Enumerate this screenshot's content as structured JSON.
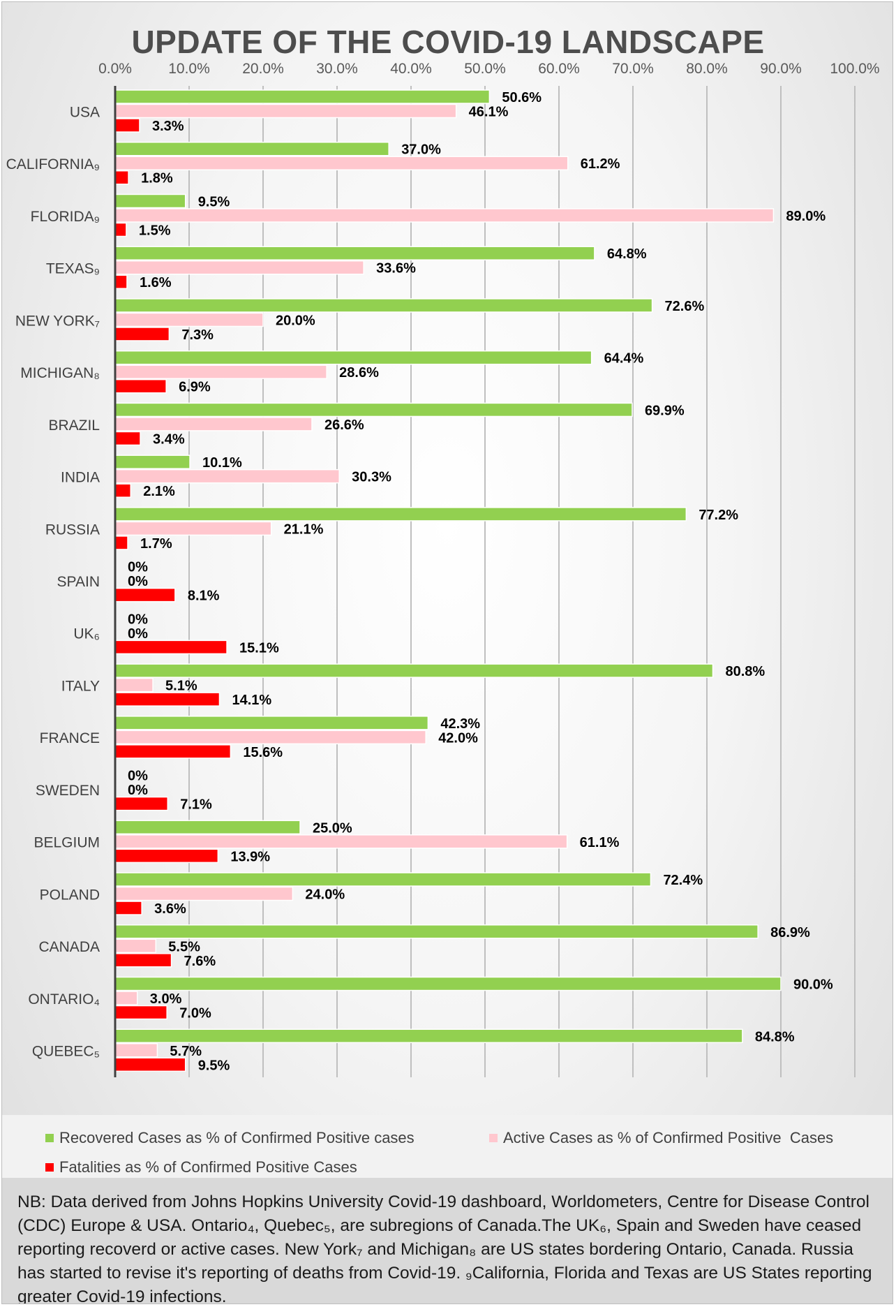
{
  "chart_data": {
    "type": "bar",
    "orientation": "horizontal",
    "title": "UPDATE OF THE COVID-19 LANDSCAPE",
    "xlim": [
      0,
      100
    ],
    "x_ticks": [
      "0.0%",
      "10.0%",
      "20.0%",
      "30.0%",
      "40.0%",
      "50.0%",
      "60.0%",
      "70.0%",
      "80.0%",
      "90.0%",
      "100.0%"
    ],
    "x_axis_position": "top",
    "grid": true,
    "legend_position": "bottom",
    "categories": [
      "USA",
      "CALIFORNIA₉",
      "FLORIDA₉",
      "TEXAS₉",
      "NEW YORK₇",
      "MICHIGAN₈",
      "BRAZIL",
      "INDIA",
      "RUSSIA",
      "SPAIN",
      "UK₆",
      "ITALY",
      "FRANCE",
      "SWEDEN",
      "BELGIUM",
      "POLAND",
      "CANADA",
      "ONTARIO₄",
      "QUEBEC₅"
    ],
    "series": [
      {
        "name": "Recovered Cases as % of Confirmed Positive cases",
        "color": "#92d050",
        "values": [
          50.6,
          37.0,
          9.5,
          64.8,
          72.6,
          64.4,
          69.9,
          10.1,
          77.2,
          0,
          0,
          80.8,
          42.3,
          0,
          25.0,
          72.4,
          86.9,
          90.0,
          84.8
        ],
        "labels": [
          "50.6%",
          "37.0%",
          "9.5%",
          "64.8%",
          "72.6%",
          "64.4%",
          "69.9%",
          "10.1%",
          "77.2%",
          "0%",
          "0%",
          "80.8%",
          "42.3%",
          "0%",
          "25.0%",
          "72.4%",
          "86.9%",
          "90.0%",
          "84.8%"
        ]
      },
      {
        "name": "Active Cases as % of Confirmed Positive  Cases",
        "color": "#ffc7ce",
        "values": [
          46.1,
          61.2,
          89.0,
          33.6,
          20.0,
          28.6,
          26.6,
          30.3,
          21.1,
          0,
          0,
          5.1,
          42.0,
          0,
          61.1,
          24.0,
          5.5,
          3.0,
          5.7
        ],
        "labels": [
          "46.1%",
          "61.2%",
          "89.0%",
          "33.6%",
          "20.0%",
          "28.6%",
          "26.6%",
          "30.3%",
          "21.1%",
          "0%",
          "0%",
          "5.1%",
          "42.0%",
          "0%",
          "61.1%",
          "24.0%",
          "5.5%",
          "3.0%",
          "5.7%"
        ]
      },
      {
        "name": "Fatalities as % of Confirmed Positive Cases",
        "color": "#ff0000",
        "values": [
          3.3,
          1.8,
          1.5,
          1.6,
          7.3,
          6.9,
          3.4,
          2.1,
          1.7,
          8.1,
          15.1,
          14.1,
          15.6,
          7.1,
          13.9,
          3.6,
          7.6,
          7.0,
          9.5
        ],
        "labels": [
          "3.3%",
          "1.8%",
          "1.5%",
          "1.6%",
          "7.3%",
          "6.9%",
          "3.4%",
          "2.1%",
          "1.7%",
          "8.1%",
          "15.1%",
          "14.1%",
          "15.6%",
          "7.1%",
          "13.9%",
          "3.6%",
          "7.6%",
          "7.0%",
          "9.5%"
        ]
      }
    ]
  },
  "note": {
    "text": "NB: Data derived from Johns Hopkins University Covid-19 dashboard, Worldometers, Centre for Disease Control (CDC) Europe & USA. Ontario₄, Quebec₅, are subregions of Canada.The UK₆, Spain and Sweden have ceased reporting recoverd or active cases. New York₇ and Michigan₈ are US states bordering Ontario, Canada. Russia has started to revise it's reporting of deaths from Covid-19. ₉California, Florida and Texas are US States reporting greater Covid-19 infections."
  }
}
